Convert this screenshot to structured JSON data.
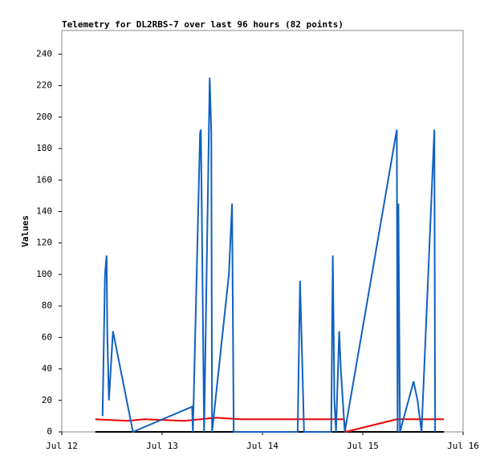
{
  "chart_data": {
    "type": "line",
    "title": "Telemetry for DL2RBS-7 over last 96 hours (82 points)",
    "y_label": "Values",
    "xlim": [
      0,
      96
    ],
    "xticks": [
      {
        "value": 0,
        "label": "Jul 12"
      },
      {
        "value": 24,
        "label": "Jul 13"
      },
      {
        "value": 48,
        "label": "Jul 14"
      },
      {
        "value": 72,
        "label": "Jul 15"
      },
      {
        "value": 96,
        "label": "Jul 16"
      }
    ],
    "ylim": [
      0,
      255
    ],
    "yticks": [
      0,
      20,
      40,
      60,
      80,
      100,
      120,
      140,
      160,
      180,
      200,
      220,
      240
    ],
    "grid": false,
    "series": [
      {
        "color": "#000000",
        "x": [
          8.03,
          91.41
        ],
        "values": [
          0,
          0
        ]
      },
      {
        "color": "#ee0000",
        "x": [
          8.03,
          15.87,
          19.7,
          29.26,
          36.91,
          42.65,
          61.77,
          67.51,
          67.89,
          80.14,
          91.41
        ],
        "values": [
          8,
          7,
          8,
          7,
          9,
          8,
          8,
          8,
          0,
          8,
          8
        ]
      },
      {
        "color": "#1060c0",
        "x": [
          9.75,
          10.33,
          10.71,
          10.9,
          11.28,
          12.24,
          17.02,
          31.17,
          31.36,
          33.08,
          33.27,
          33.47,
          34.04,
          35.0,
          35.38,
          35.76,
          35.95,
          39.97,
          40.73,
          41.12,
          56.42,
          56.99,
          57.56,
          57.95,
          64.45,
          64.83,
          65.21,
          65.6,
          66.36,
          66.74,
          67.7,
          80.14,
          80.33,
          80.52,
          80.9,
          84.15,
          85.1,
          86.06,
          89.12,
          89.31
        ],
        "values": [
          10,
          100,
          112,
          60,
          20,
          64,
          0,
          16,
          0,
          190,
          192,
          145,
          0,
          160,
          225,
          190,
          0,
          100,
          145,
          0,
          0,
          96,
          40,
          0,
          0,
          112,
          20,
          0,
          64,
          40,
          0,
          192,
          0,
          145,
          0,
          32,
          20,
          0,
          192,
          0
        ]
      }
    ]
  }
}
